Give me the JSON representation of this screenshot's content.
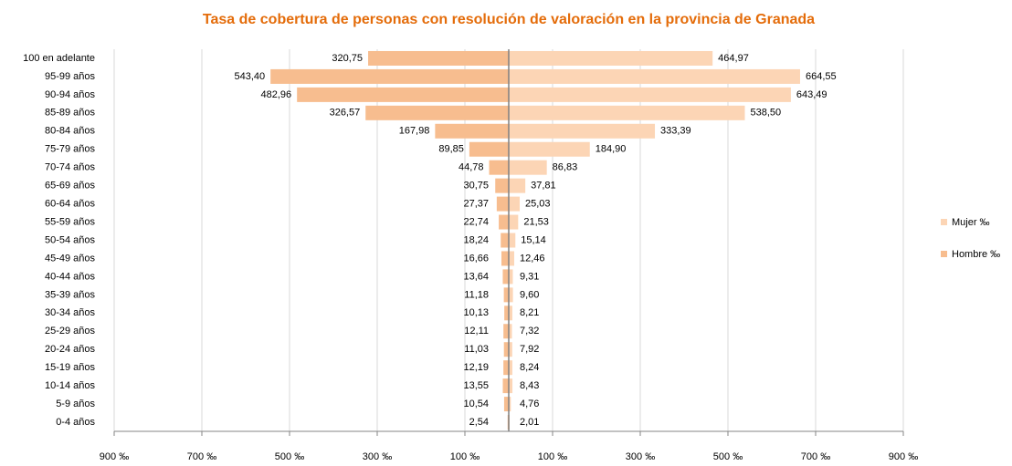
{
  "chart_data": {
    "type": "pyramid",
    "title": "Tasa de cobertura de personas con resolución de valoración en la provincia de Granada",
    "categories": [
      "100 en adelante",
      "95-99 años",
      "90-94 años",
      "85-89 años",
      "80-84 años",
      "75-79 años",
      "70-74 años",
      "65-69 años",
      "60-64 años",
      "55-59 años",
      "50-54 años",
      "45-49 años",
      "40-44 años",
      "35-39 años",
      "30-34 años",
      "25-29 años",
      "20-24 años",
      "15-19 años",
      "10-14 años",
      "5-9 años",
      "0-4 años"
    ],
    "series": [
      {
        "name": "Mujer ‰",
        "color": "#fcd5b5",
        "values": [
          464.97,
          664.55,
          643.49,
          538.5,
          333.39,
          184.9,
          86.83,
          37.81,
          25.03,
          21.53,
          15.14,
          12.46,
          9.31,
          9.6,
          8.21,
          7.32,
          7.92,
          8.24,
          8.43,
          4.76,
          2.01
        ],
        "value_labels": [
          "464,97",
          "664,55",
          "643,49",
          "538,50",
          "333,39",
          "184,90",
          "86,83",
          "37,81",
          "25,03",
          "21,53",
          "15,14",
          "12,46",
          "9,31",
          "9,60",
          "8,21",
          "7,32",
          "7,92",
          "8,24",
          "8,43",
          "4,76",
          "2,01"
        ]
      },
      {
        "name": "Hombre ‰",
        "color": "#f7bd8f",
        "values": [
          -320.75,
          -543.4,
          -482.96,
          -326.57,
          -167.98,
          -89.85,
          -44.78,
          -30.75,
          -27.37,
          -22.74,
          -18.24,
          -16.66,
          -13.64,
          -11.18,
          -10.13,
          -12.11,
          -11.03,
          -12.19,
          -13.55,
          -10.54,
          -2.54
        ],
        "value_labels": [
          "320,75",
          "543,40",
          "482,96",
          "326,57",
          "167,98",
          "89,85",
          "44,78",
          "30,75",
          "27,37",
          "22,74",
          "18,24",
          "16,66",
          "13,64",
          "11,18",
          "10,13",
          "12,11",
          "11,03",
          "12,19",
          "13,55",
          "10,54",
          "2,54"
        ]
      }
    ],
    "xlim": [
      -900,
      900
    ],
    "xticks": [
      {
        "value": -900,
        "label": "900 ‰"
      },
      {
        "value": -700,
        "label": "700 ‰"
      },
      {
        "value": -500,
        "label": "500 ‰"
      },
      {
        "value": -300,
        "label": "300 ‰"
      },
      {
        "value": -100,
        "label": "100 ‰"
      },
      {
        "value": 100,
        "label": "100 ‰"
      },
      {
        "value": 300,
        "label": "300 ‰"
      },
      {
        "value": 500,
        "label": "500 ‰"
      },
      {
        "value": 700,
        "label": "700 ‰"
      },
      {
        "value": 900,
        "label": "900 ‰"
      }
    ],
    "grid": true,
    "legend": "right"
  }
}
